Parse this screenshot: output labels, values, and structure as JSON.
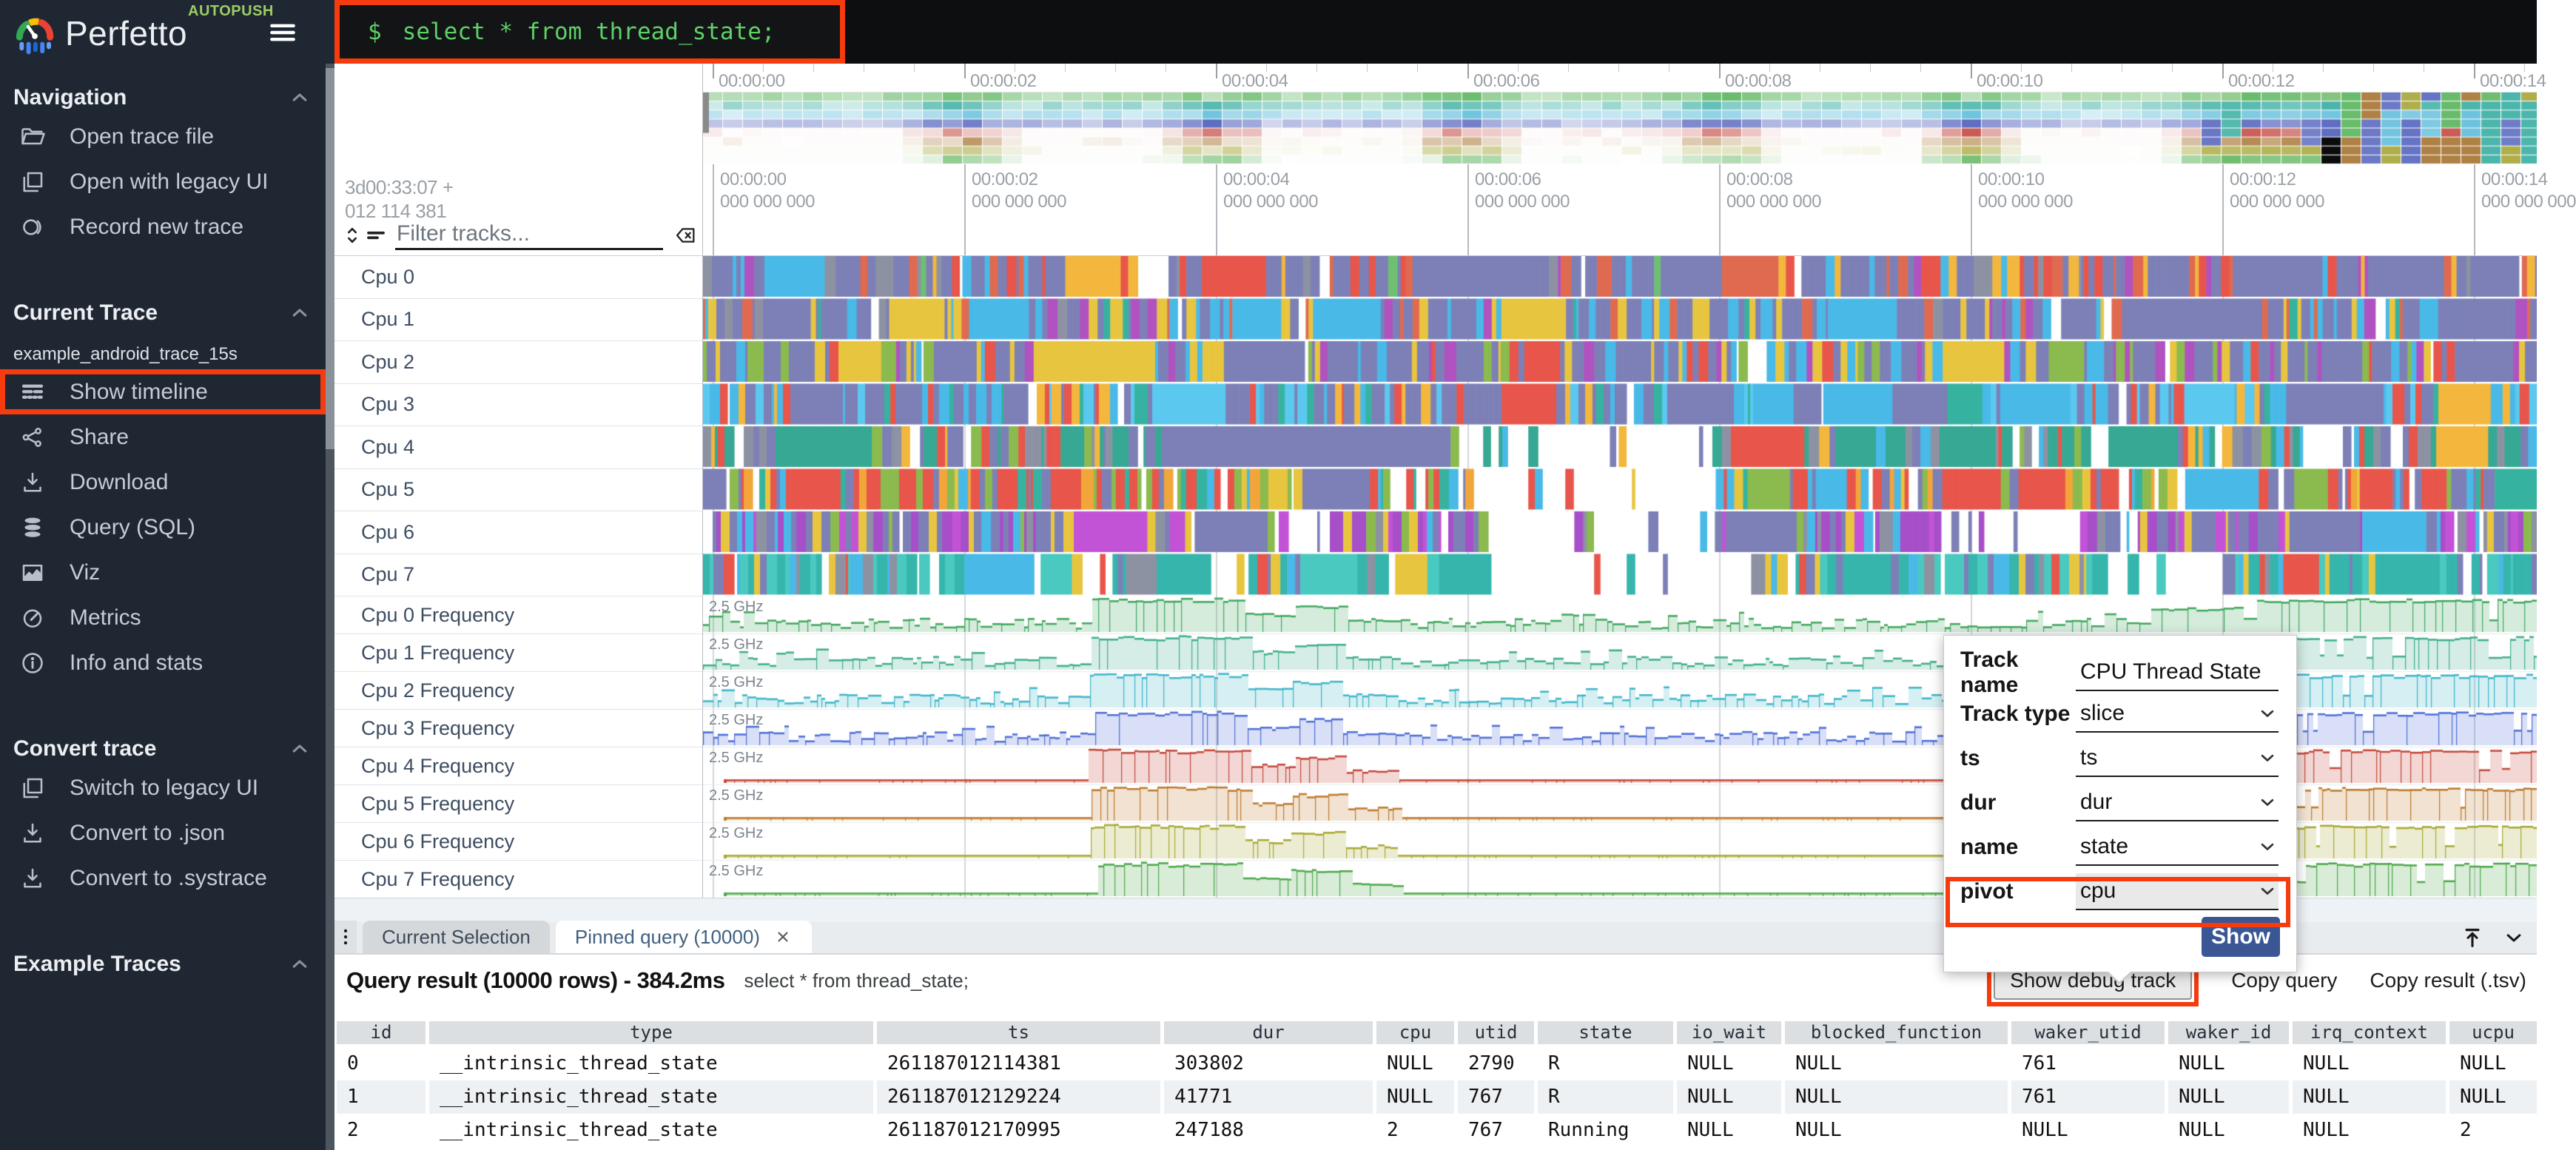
{
  "app": {
    "logo_text": "Perfetto",
    "badge": "AUTOPUSH"
  },
  "omnibox": {
    "prompt": "$",
    "query": "select * from thread_state;"
  },
  "colors": {
    "highlight_orange": "#f63b0e",
    "accent_blue": "#3a5694",
    "terminal_green": "#5fd068",
    "sidebar_bg": "#1f2733"
  },
  "sidebar": {
    "sections": [
      {
        "title": "Navigation",
        "items": [
          {
            "icon": "folder-open",
            "label": "Open trace file"
          },
          {
            "icon": "copy-window",
            "label": "Open with legacy UI"
          },
          {
            "icon": "record",
            "label": "Record new trace"
          }
        ]
      },
      {
        "title": "Current Trace",
        "trace_name": "example_android_trace_15s",
        "items": [
          {
            "icon": "timeline",
            "label": "Show timeline",
            "highlighted": true
          },
          {
            "icon": "share",
            "label": "Share"
          },
          {
            "icon": "download",
            "label": "Download"
          },
          {
            "icon": "database",
            "label": "Query (SQL)"
          },
          {
            "icon": "chart",
            "label": "Viz"
          },
          {
            "icon": "gauge",
            "label": "Metrics"
          },
          {
            "icon": "info",
            "label": "Info and stats"
          }
        ]
      },
      {
        "title": "Convert trace",
        "items": [
          {
            "icon": "copy-window",
            "label": "Switch to legacy UI"
          },
          {
            "icon": "download",
            "label": "Convert to .json"
          },
          {
            "icon": "download",
            "label": "Convert to .systrace"
          }
        ]
      },
      {
        "title": "Example Traces",
        "items": []
      }
    ]
  },
  "timeline": {
    "clock_line1": "3d00:33:07  +",
    "clock_line2": "012 114 381",
    "filter_placeholder": "Filter tracks...",
    "ruler_labels": [
      "00:00:00",
      "00:00:02",
      "00:00:04",
      "00:00:06",
      "00:00:08",
      "00:00:10",
      "00:00:12",
      "00:00:14"
    ],
    "ruler_sub": "000 000 000",
    "minimap_row_colors": [
      "#4caf50",
      "#26a69a",
      "#53b8d8",
      "#3f51b5",
      "#c03a32",
      "#a0681f",
      "#9e9d24",
      "#58b054"
    ],
    "sched_tracks": [
      {
        "name": "Cpu 0",
        "palette": [
          "#7c80b6",
          "#df6a50",
          "#e8554a",
          "#f2b73c",
          "#49b9e8",
          "#8d92a3",
          "#6fbf73",
          "#b052c0"
        ],
        "weights": [
          0.42,
          0.12,
          0.1,
          0.1,
          0.1,
          0.08,
          0.04,
          0.04
        ]
      },
      {
        "name": "Cpu 1",
        "palette": [
          "#7c80b6",
          "#49b9e8",
          "#e8c53f",
          "#df6a50",
          "#36b3a0",
          "#b052c0",
          "#8d92a3"
        ],
        "weights": [
          0.45,
          0.15,
          0.12,
          0.1,
          0.07,
          0.06,
          0.05
        ]
      },
      {
        "name": "Cpu 2",
        "palette": [
          "#7c80b6",
          "#e8c53f",
          "#8bba4f",
          "#49b9e8",
          "#e8554a",
          "#b052c0"
        ],
        "weights": [
          0.5,
          0.14,
          0.1,
          0.1,
          0.09,
          0.07
        ]
      },
      {
        "name": "Cpu 3",
        "palette": [
          "#7c80b6",
          "#49b9e8",
          "#5bc8f0",
          "#e8554a",
          "#f2b73c",
          "#36b3a0"
        ],
        "weights": [
          0.45,
          0.2,
          0.12,
          0.1,
          0.07,
          0.06
        ]
      },
      {
        "name": "Cpu 4",
        "palette": [
          "#36a893",
          "#8d92a3",
          "#7c80b6",
          "#e8554a",
          "#8bba4f",
          "#49b9e8",
          "#f2b73c"
        ],
        "weights": [
          0.3,
          0.18,
          0.15,
          0.12,
          0.1,
          0.08,
          0.07
        ]
      },
      {
        "name": "Cpu 5",
        "palette": [
          "#e8554a",
          "#7c80b6",
          "#f2a63a",
          "#8bba4f",
          "#36b3a0",
          "#49b9e8",
          "#e8c53f"
        ],
        "weights": [
          0.28,
          0.2,
          0.14,
          0.12,
          0.1,
          0.09,
          0.07
        ]
      },
      {
        "name": "Cpu 6",
        "palette": [
          "#7c80b6",
          "#a74fc8",
          "#c353d6",
          "#e8c53f",
          "#49b9e8",
          "#8bba4f",
          "#8d92a3"
        ],
        "weights": [
          0.35,
          0.18,
          0.12,
          0.12,
          0.09,
          0.08,
          0.06
        ]
      },
      {
        "name": "Cpu 7",
        "palette": [
          "#35b5ac",
          "#49c9c0",
          "#7c80b6",
          "#8d92a3",
          "#e8c53f",
          "#49b9e8",
          "#e8554a"
        ],
        "weights": [
          0.35,
          0.2,
          0.12,
          0.1,
          0.09,
          0.08,
          0.06
        ]
      }
    ],
    "freq_tracks": [
      {
        "name": "Cpu 0 Frequency",
        "scale": "2.5 GHz",
        "color": "#41a85f"
      },
      {
        "name": "Cpu 1 Frequency",
        "scale": "2.5 GHz",
        "color": "#3fae8c"
      },
      {
        "name": "Cpu 2 Frequency",
        "scale": "2.5 GHz",
        "color": "#3fb6c9"
      },
      {
        "name": "Cpu 3 Frequency",
        "scale": "2.5 GHz",
        "color": "#4f6fd8"
      },
      {
        "name": "Cpu 4 Frequency",
        "scale": "2.5 GHz",
        "color": "#c4493c"
      },
      {
        "name": "Cpu 5 Frequency",
        "scale": "2.5 GHz",
        "color": "#bd7b2e"
      },
      {
        "name": "Cpu 6 Frequency",
        "scale": "2.5 GHz",
        "color": "#a8a832"
      },
      {
        "name": "Cpu 7 Frequency",
        "scale": "2.5 GHz",
        "color": "#4da84a"
      }
    ]
  },
  "popup": {
    "rows": [
      {
        "label": "Track name",
        "value": "CPU Thread State",
        "control": "input"
      },
      {
        "label": "Track type",
        "value": "slice",
        "control": "select"
      },
      {
        "label": "ts",
        "value": "ts",
        "control": "select"
      },
      {
        "label": "dur",
        "value": "dur",
        "control": "select"
      },
      {
        "label": "name",
        "value": "state",
        "control": "select"
      },
      {
        "label": "pivot",
        "value": "cpu",
        "control": "select",
        "highlighted": true
      }
    ],
    "show_label": "Show"
  },
  "bottom": {
    "tabs": [
      {
        "label": "Current Selection",
        "active": false,
        "closable": false
      },
      {
        "label": "Pinned query (10000)",
        "active": true,
        "closable": true
      }
    ],
    "result_summary": "Query result (10000 rows) - 384.2ms",
    "result_query": "select * from thread_state;",
    "actions": [
      {
        "label": "Show debug track",
        "button": true,
        "highlighted": true
      },
      {
        "label": "Copy query"
      },
      {
        "label": "Copy result (.tsv)"
      }
    ],
    "table": {
      "columns": [
        "id",
        "type",
        "ts",
        "dur",
        "cpu",
        "utid",
        "state",
        "io_wait",
        "blocked_function",
        "waker_utid",
        "waker_id",
        "irq_context",
        "ucpu"
      ],
      "rows": [
        [
          "0",
          "__intrinsic_thread_state",
          "261187012114381",
          "303802",
          "NULL",
          "2790",
          "R",
          "NULL",
          "NULL",
          "761",
          "NULL",
          "NULL",
          "NULL"
        ],
        [
          "1",
          "__intrinsic_thread_state",
          "261187012129224",
          "41771",
          "NULL",
          "767",
          "R",
          "NULL",
          "NULL",
          "761",
          "NULL",
          "NULL",
          "NULL"
        ],
        [
          "2",
          "__intrinsic_thread_state",
          "261187012170995",
          "247188",
          "2",
          "767",
          "Running",
          "NULL",
          "NULL",
          "NULL",
          "NULL",
          "NULL",
          "2"
        ]
      ]
    }
  }
}
